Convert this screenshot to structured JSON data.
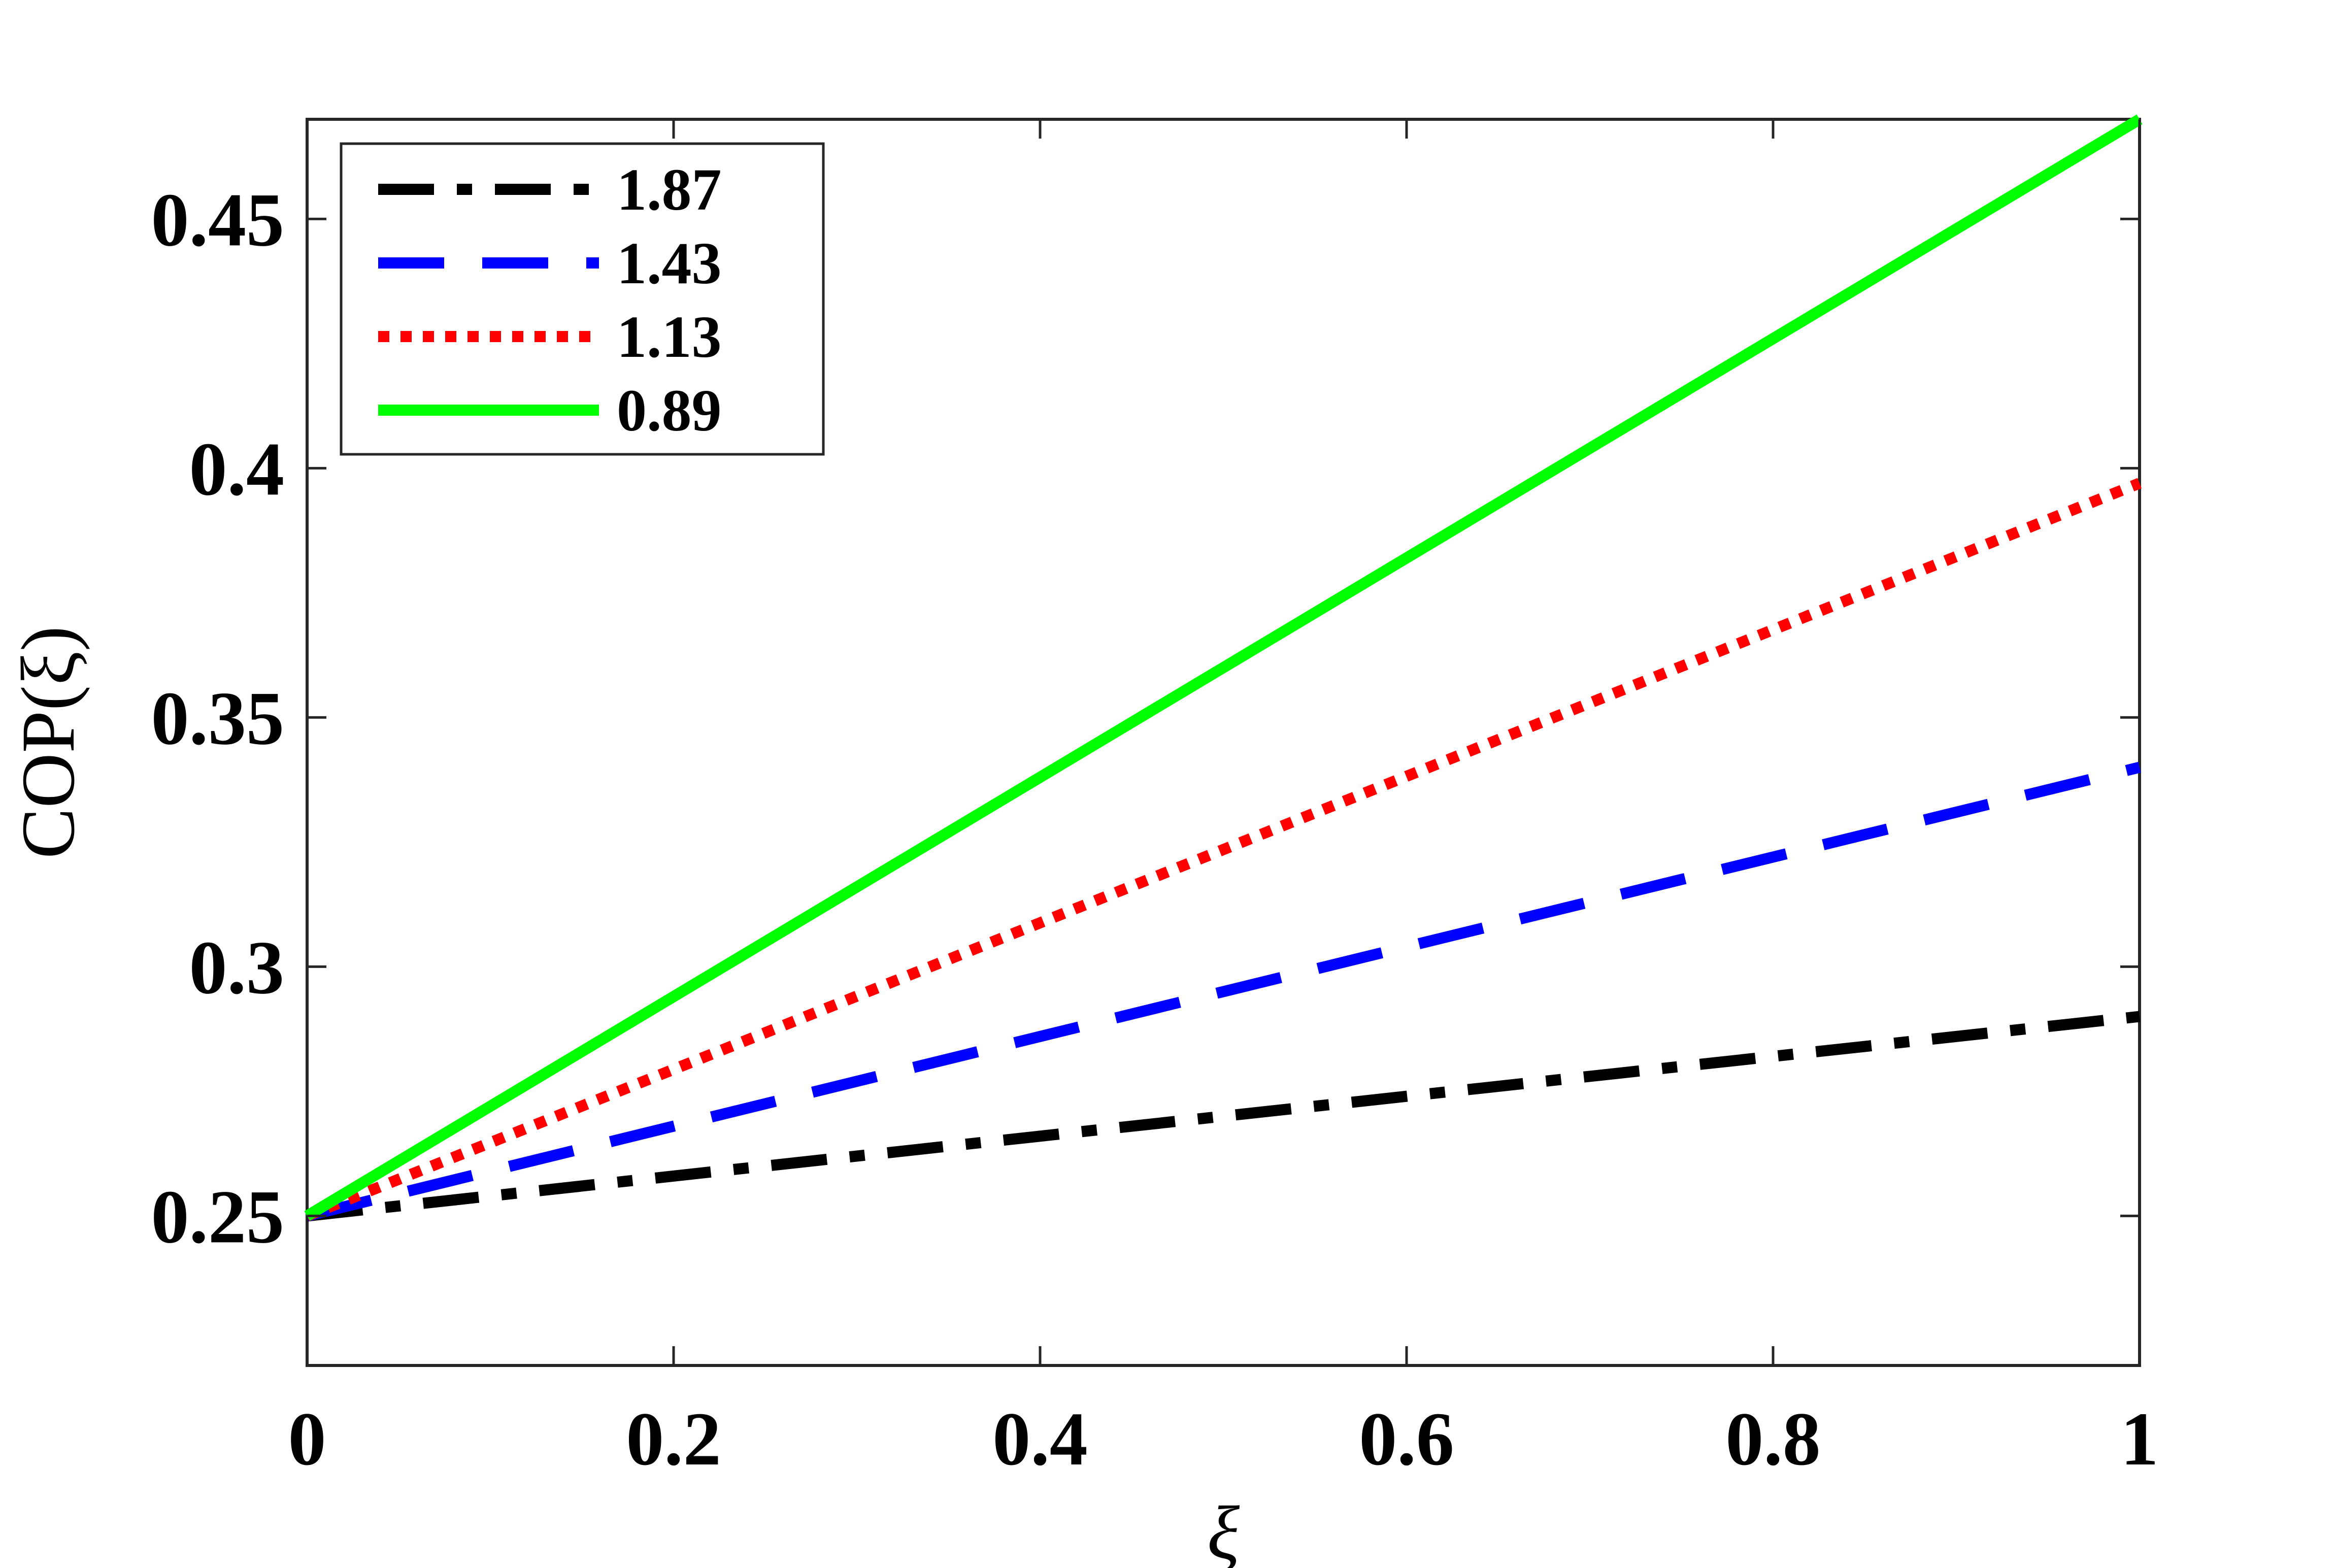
{
  "chart_data": {
    "type": "line",
    "title": "",
    "xlabel": "ξ",
    "ylabel": "COP(ξ)",
    "xlim": [
      0,
      1
    ],
    "ylim": [
      0.22,
      0.47
    ],
    "xticks": [
      0,
      0.2,
      0.4,
      0.6,
      0.8,
      1
    ],
    "xtick_labels": [
      "0",
      "0.2",
      "0.4",
      "0.6",
      "0.8",
      "1"
    ],
    "yticks": [
      0.25,
      0.3,
      0.35,
      0.4,
      0.45
    ],
    "ytick_labels": [
      "0.25",
      "0.3",
      "0.35",
      "0.4",
      "0.45"
    ],
    "grid": false,
    "legend_position": "top-left",
    "series": [
      {
        "name": "1.87",
        "x": [
          0,
          1
        ],
        "y": [
          0.25,
          0.29
        ],
        "color": "#000000",
        "style": "dash-dot"
      },
      {
        "name": "1.43",
        "x": [
          0,
          1
        ],
        "y": [
          0.25,
          0.34
        ],
        "color": "#0000ff",
        "style": "dashed"
      },
      {
        "name": "1.13",
        "x": [
          0,
          1
        ],
        "y": [
          0.25,
          0.397
        ],
        "color": "#ff0000",
        "style": "dotted"
      },
      {
        "name": "0.89",
        "x": [
          0,
          1
        ],
        "y": [
          0.25,
          0.47
        ],
        "color": "#00ff00",
        "style": "solid"
      }
    ]
  }
}
